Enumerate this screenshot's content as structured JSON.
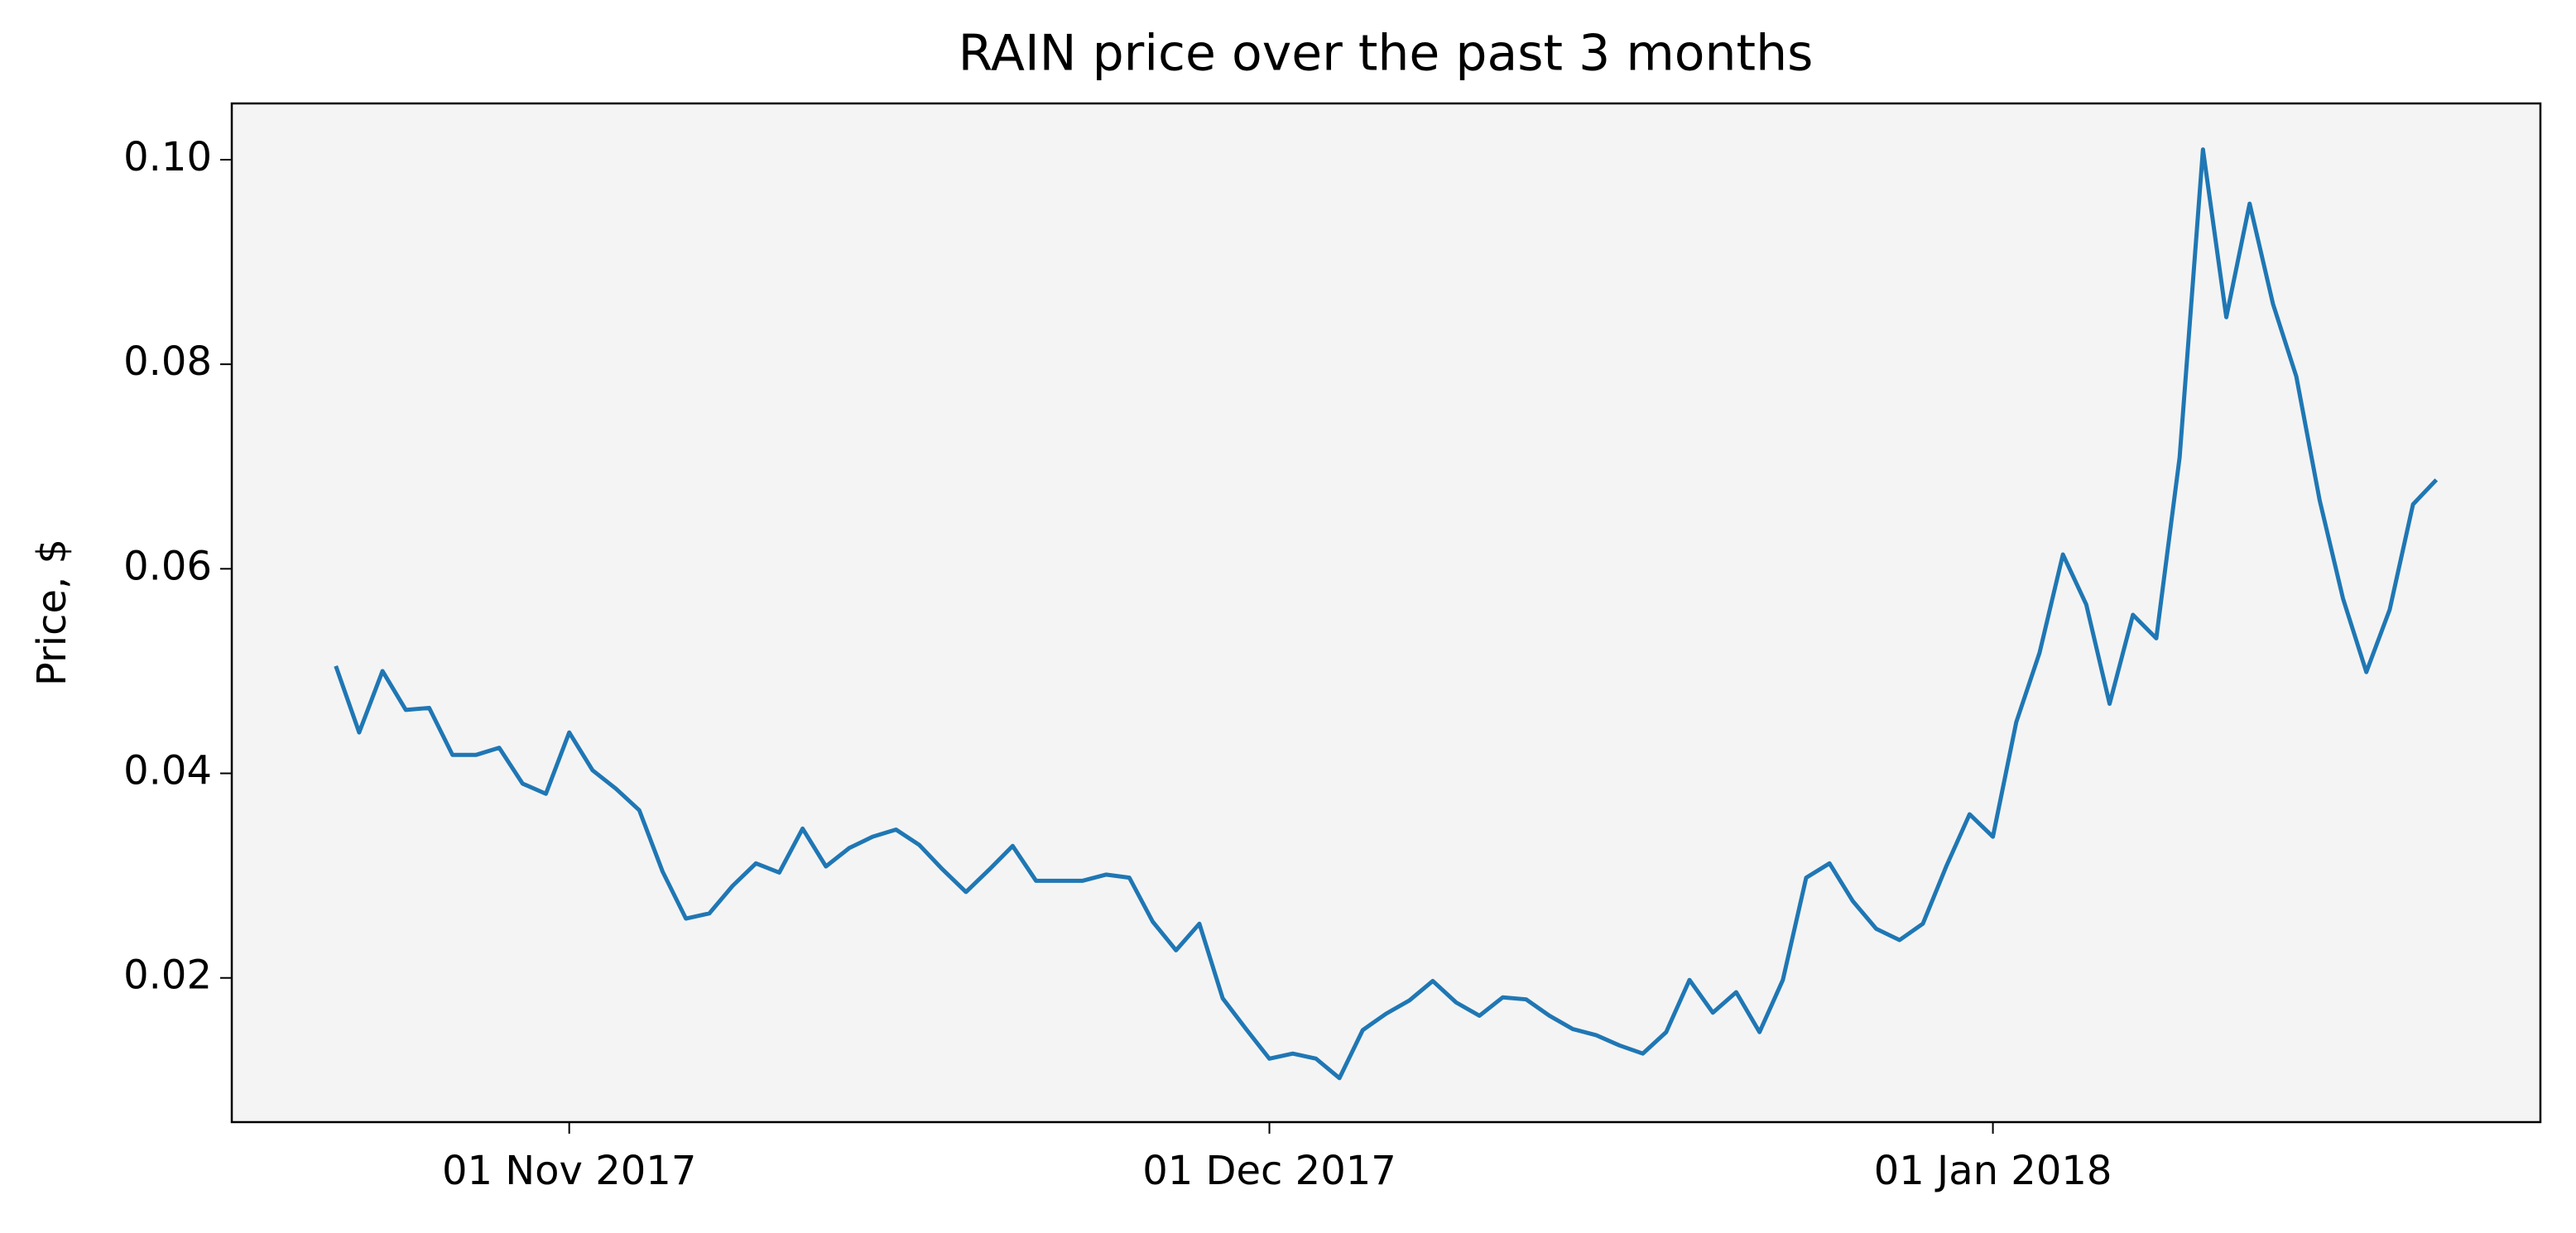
{
  "chart_data": {
    "type": "line",
    "title": "RAIN price over the past 3 months",
    "y_label": "Price, $",
    "x": [
      "2017-10-22",
      "2017-10-23",
      "2017-10-24",
      "2017-10-25",
      "2017-10-26",
      "2017-10-27",
      "2017-10-28",
      "2017-10-29",
      "2017-10-30",
      "2017-10-31",
      "2017-11-01",
      "2017-11-02",
      "2017-11-03",
      "2017-11-04",
      "2017-11-05",
      "2017-11-06",
      "2017-11-07",
      "2017-11-08",
      "2017-11-09",
      "2017-11-10",
      "2017-11-11",
      "2017-11-12",
      "2017-11-13",
      "2017-11-14",
      "2017-11-15",
      "2017-11-16",
      "2017-11-17",
      "2017-11-18",
      "2017-11-19",
      "2017-11-20",
      "2017-11-21",
      "2017-11-22",
      "2017-11-23",
      "2017-11-24",
      "2017-11-25",
      "2017-11-26",
      "2017-11-27",
      "2017-11-28",
      "2017-11-29",
      "2017-11-30",
      "2017-12-01",
      "2017-12-02",
      "2017-12-03",
      "2017-12-04",
      "2017-12-05",
      "2017-12-06",
      "2017-12-07",
      "2017-12-08",
      "2017-12-09",
      "2017-12-10",
      "2017-12-11",
      "2017-12-12",
      "2017-12-13",
      "2017-12-14",
      "2017-12-15",
      "2017-12-16",
      "2017-12-17",
      "2017-12-18",
      "2017-12-19",
      "2017-12-20",
      "2017-12-21",
      "2017-12-22",
      "2017-12-23",
      "2017-12-24",
      "2017-12-25",
      "2017-12-26",
      "2017-12-27",
      "2017-12-28",
      "2017-12-29",
      "2017-12-30",
      "2017-12-31",
      "2018-01-01",
      "2018-01-02",
      "2018-01-03",
      "2018-01-04",
      "2018-01-05",
      "2018-01-06",
      "2018-01-07",
      "2018-01-08",
      "2018-01-09",
      "2018-01-10",
      "2018-01-11",
      "2018-01-12",
      "2018-01-13",
      "2018-01-14",
      "2018-01-15",
      "2018-01-16",
      "2018-01-17",
      "2018-01-18",
      "2018-01-19",
      "2018-01-20"
    ],
    "series": [
      {
        "name": "RAIN",
        "color": "#1f77b4",
        "values": [
          0.0505,
          0.044,
          0.05,
          0.0462,
          0.0464,
          0.0418,
          0.0418,
          0.0425,
          0.039,
          0.038,
          0.044,
          0.0403,
          0.0385,
          0.0364,
          0.0304,
          0.0258,
          0.0263,
          0.029,
          0.0312,
          0.0303,
          0.0346,
          0.0309,
          0.0327,
          0.0338,
          0.0345,
          0.033,
          0.0306,
          0.0284,
          0.0306,
          0.0329,
          0.0295,
          0.0295,
          0.0295,
          0.0301,
          0.0298,
          0.0255,
          0.0227,
          0.0253,
          0.018,
          0.015,
          0.0121,
          0.0126,
          0.0121,
          0.0102,
          0.0149,
          0.0165,
          0.0178,
          0.0197,
          0.0176,
          0.0163,
          0.0181,
          0.0179,
          0.0163,
          0.015,
          0.0144,
          0.0134,
          0.0126,
          0.0147,
          0.0198,
          0.0166,
          0.0186,
          0.0147,
          0.0198,
          0.0298,
          0.0312,
          0.0275,
          0.0248,
          0.0237,
          0.0253,
          0.0309,
          0.036,
          0.0338,
          0.045,
          0.0518,
          0.0614,
          0.0565,
          0.0468,
          0.0555,
          0.0532,
          0.0709,
          0.101,
          0.0846,
          0.0957,
          0.0859,
          0.0788,
          0.0667,
          0.0571,
          0.0499,
          0.056,
          0.0663,
          0.0687
        ]
      }
    ],
    "xlim": [
      "2017-10-17T13:00",
      "2018-01-24T11:00"
    ],
    "xticks": [
      {
        "value": "2017-11-01",
        "label": "01 Nov 2017"
      },
      {
        "value": "2017-12-01",
        "label": "01 Dec 2017"
      },
      {
        "value": "2018-01-01",
        "label": "01 Jan 2018"
      }
    ],
    "ylim": [
      0.0059,
      0.1055
    ],
    "yticks": [
      0.02,
      0.04,
      0.06,
      {
        "value": 0.1,
        "label": "0.10"
      },
      0.08
    ],
    "plot_background": "#f4f4f4"
  }
}
